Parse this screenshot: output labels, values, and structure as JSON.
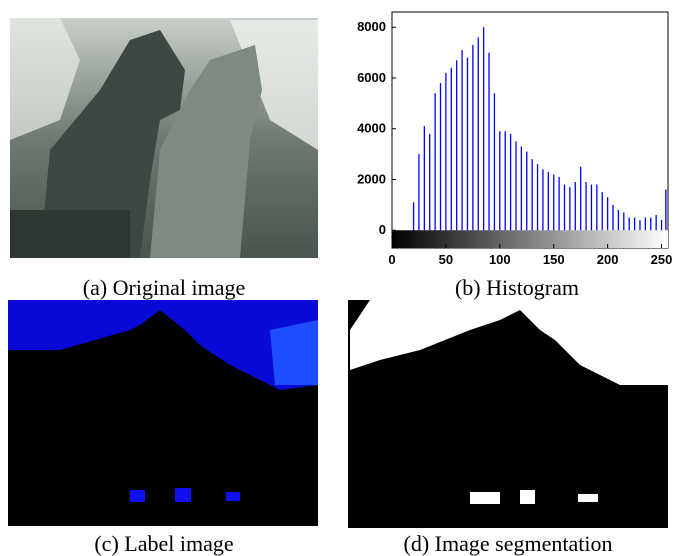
{
  "figure": {
    "captions": [
      "(a) Original image",
      "(b) Histogram",
      "(c) Label image",
      "(d) Image segmentation"
    ]
  },
  "chart_data": {
    "type": "bar",
    "color": "#0000ff",
    "x": [
      20,
      25,
      30,
      35,
      40,
      45,
      50,
      55,
      60,
      65,
      70,
      75,
      80,
      85,
      90,
      95,
      100,
      105,
      110,
      115,
      120,
      125,
      130,
      135,
      140,
      145,
      150,
      155,
      160,
      165,
      170,
      175,
      180,
      185,
      190,
      195,
      200,
      205,
      210,
      215,
      220,
      225,
      230,
      235,
      240,
      245,
      250,
      254
    ],
    "values": [
      1100,
      3000,
      4100,
      3800,
      5400,
      5800,
      6200,
      6400,
      6700,
      7100,
      6800,
      7300,
      7600,
      8000,
      7000,
      5400,
      3900,
      3900,
      3800,
      3500,
      3300,
      3100,
      2800,
      2600,
      2400,
      2300,
      2200,
      2100,
      1800,
      1700,
      1900,
      2500,
      1900,
      1800,
      1800,
      1500,
      1300,
      1000,
      800,
      700,
      500,
      500,
      400,
      500,
      500,
      600,
      400,
      1600
    ],
    "xlim": [
      0,
      256
    ],
    "ylim": [
      -700,
      8600
    ],
    "xticks": [
      0,
      50,
      100,
      150,
      200,
      250
    ],
    "yticks": [
      0,
      2000,
      4000,
      6000,
      8000
    ]
  }
}
